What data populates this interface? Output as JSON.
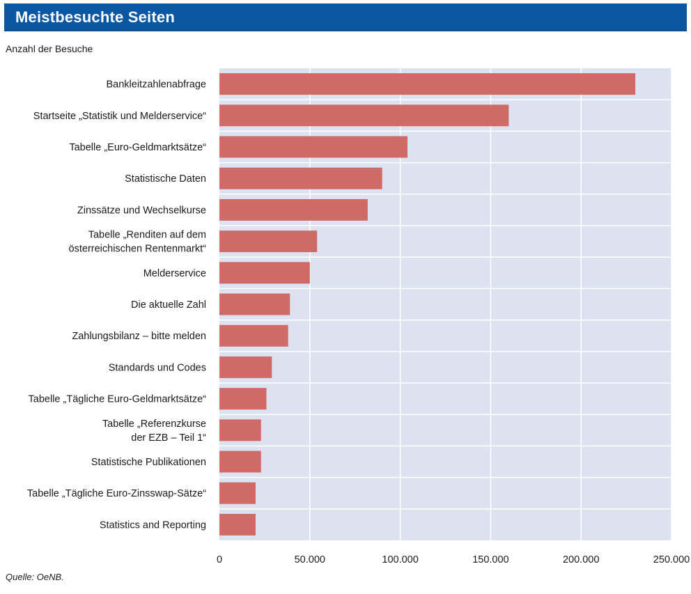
{
  "header": {
    "title": "Meistbesuchte Seiten"
  },
  "subtitle": "Anzahl der Besuche",
  "source": "Quelle: OeNB.",
  "colors": {
    "header_bg": "#0a56a0",
    "plot_bg": "#dde2f0",
    "bar": "#cf6a66",
    "grid": "#ffffff"
  },
  "chart_data": {
    "type": "bar",
    "orientation": "horizontal",
    "categories": [
      [
        "Bankleitzahlenabfrage"
      ],
      [
        "Startseite „Statistik und Melderservice“"
      ],
      [
        "Tabelle „Euro-Geldmarktsätze“"
      ],
      [
        "Statistische Daten"
      ],
      [
        "Zinssätze und Wechselkurse"
      ],
      [
        "Tabelle „Renditen auf dem",
        "österreichischen Rentenmarkt“"
      ],
      [
        "Melderservice"
      ],
      [
        "Die aktuelle Zahl"
      ],
      [
        "Zahlungsbilanz – bitte melden"
      ],
      [
        "Standards und Codes"
      ],
      [
        "Tabelle „Tägliche Euro-Geldmarktsätze“"
      ],
      [
        "Tabelle „Referenzkurse",
        "der EZB – Teil 1“"
      ],
      [
        "Statistische Publikationen"
      ],
      [
        "Tabelle „Tägliche Euro-Zinsswap-Sätze“"
      ],
      [
        "Statistics and Reporting"
      ]
    ],
    "values": [
      230000,
      160000,
      104000,
      90000,
      82000,
      54000,
      50000,
      39000,
      38000,
      29000,
      26000,
      23000,
      23000,
      20000,
      20000
    ],
    "xlim": [
      0,
      250000
    ],
    "xticks": [
      0,
      50000,
      100000,
      150000,
      200000,
      250000
    ],
    "xtick_labels": [
      "0",
      "50.000",
      "100.000",
      "150.000",
      "200.000",
      "250.000"
    ],
    "grid": true
  }
}
